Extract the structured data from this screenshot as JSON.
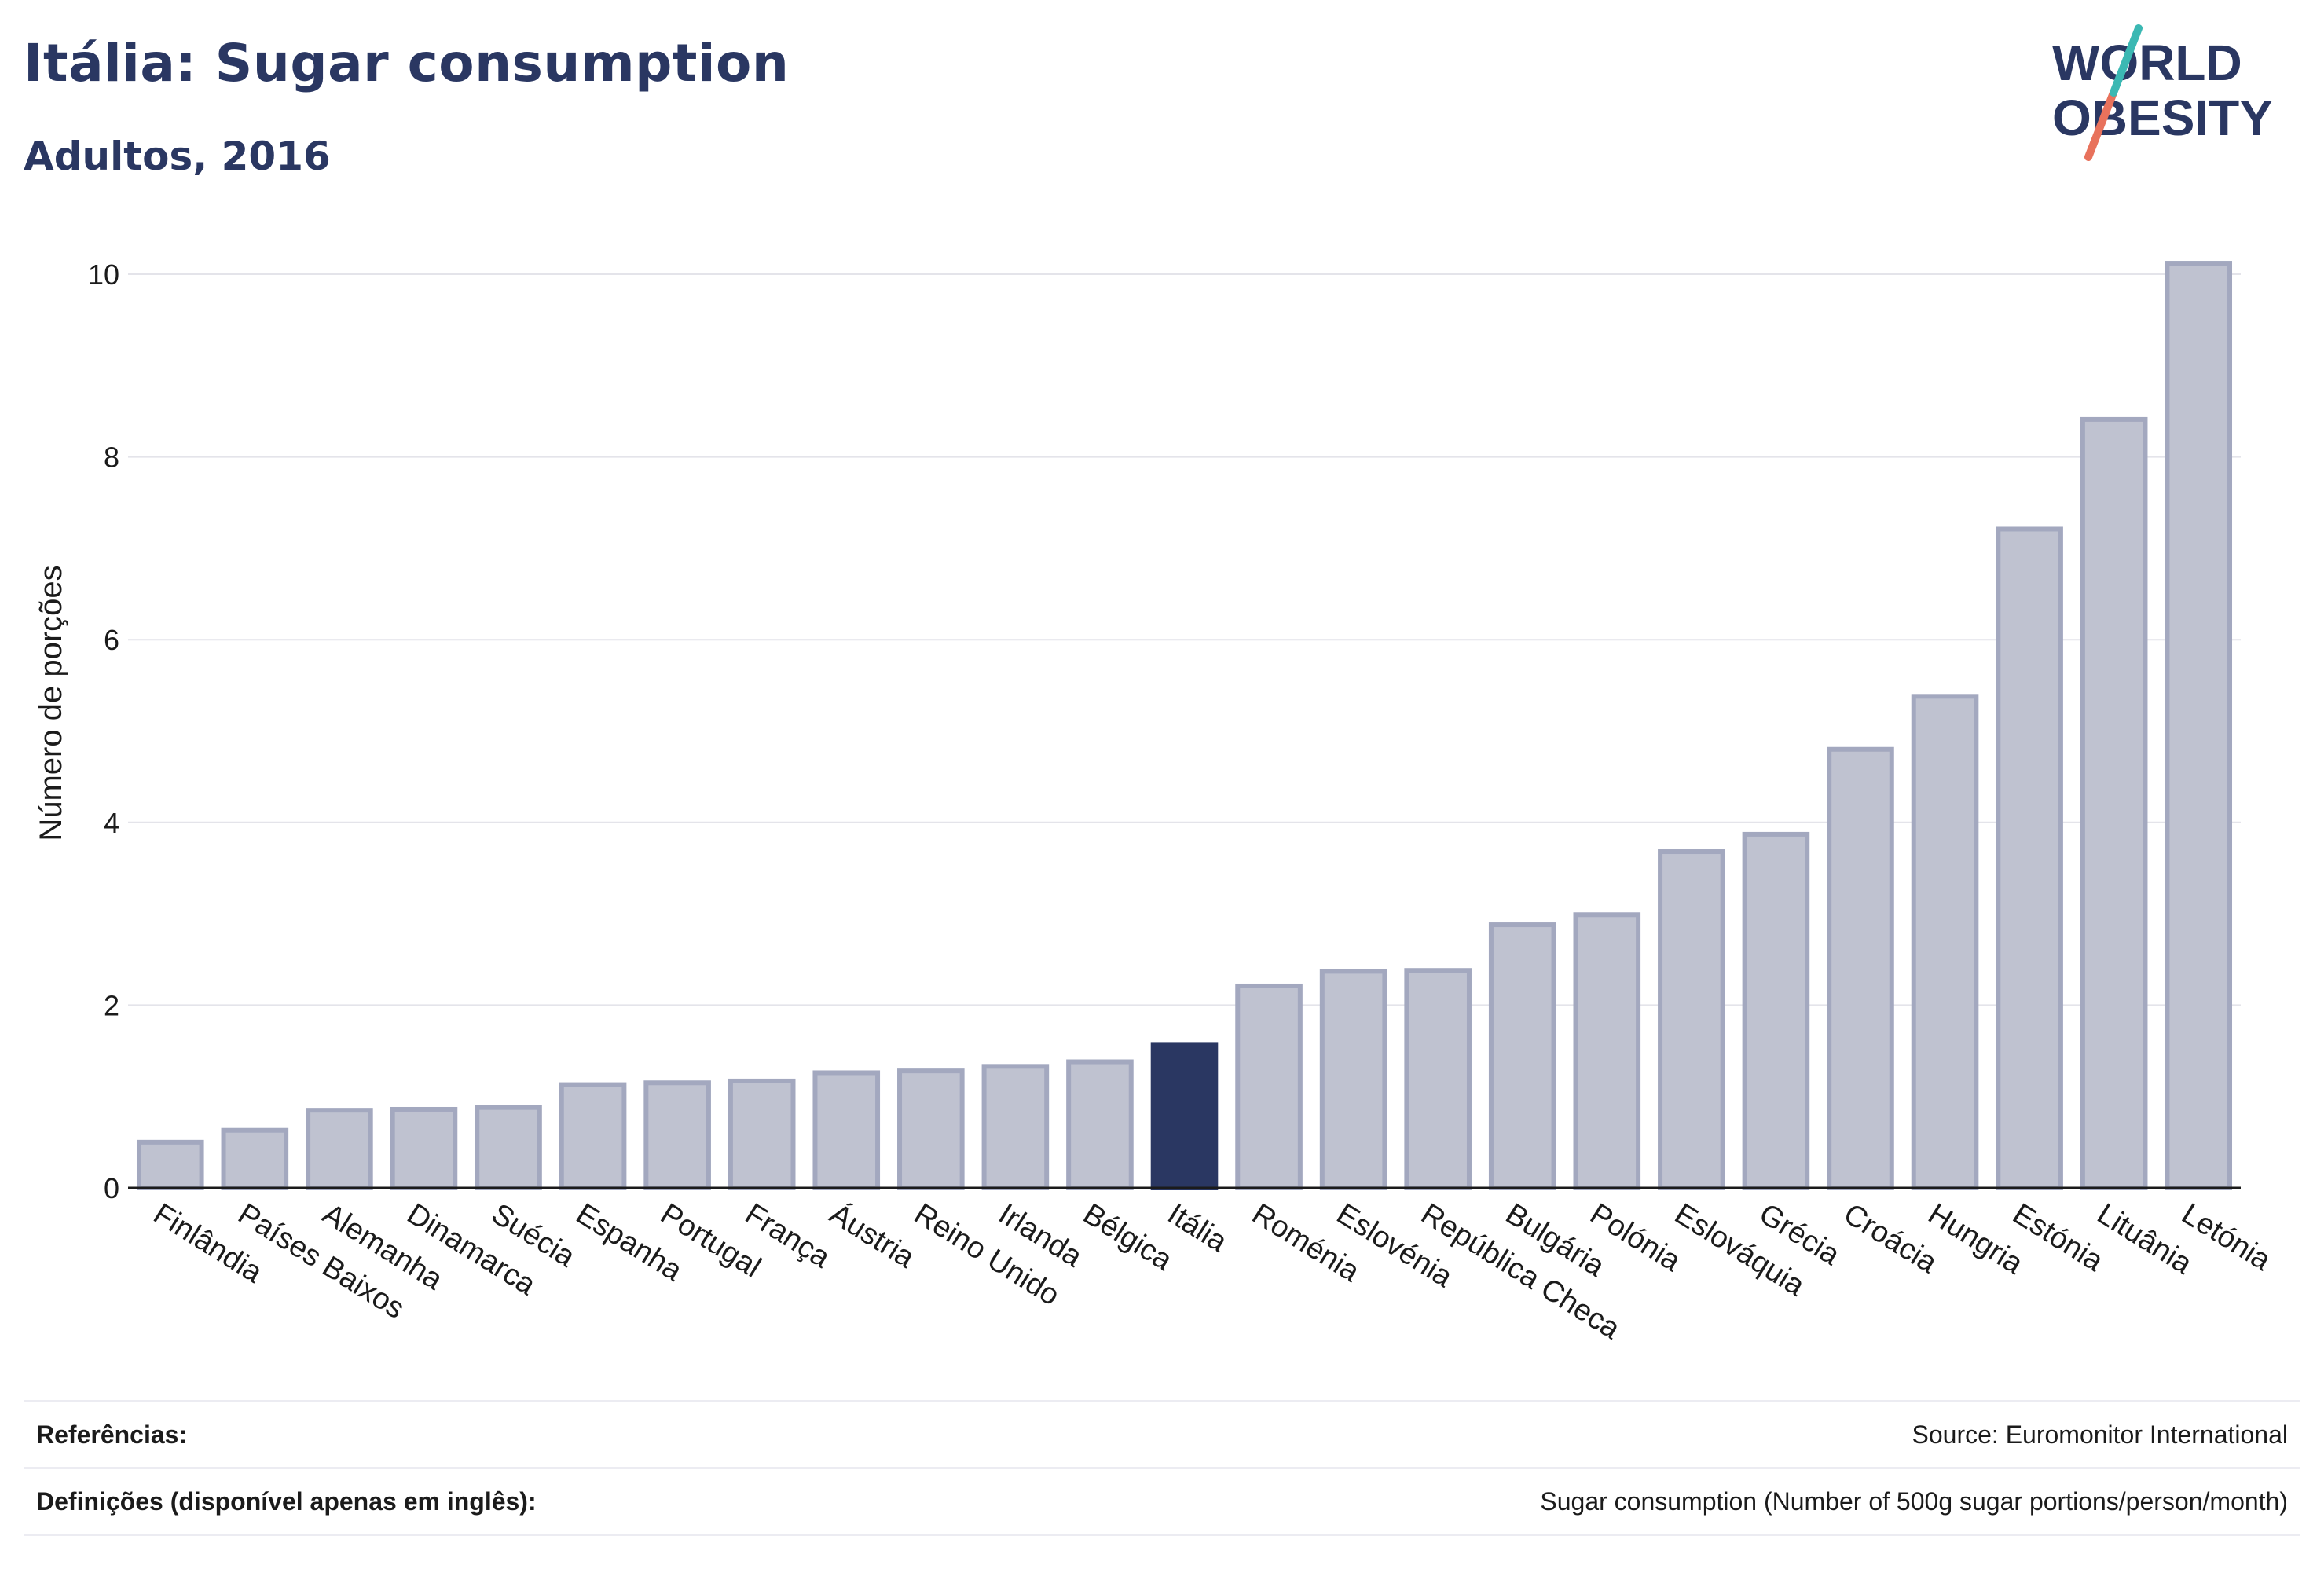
{
  "header": {
    "title": "Itália: Sugar consumption",
    "subtitle": "Adultos, 2016"
  },
  "logo": {
    "line1": "WORLD",
    "line2": "OBESITY"
  },
  "colors": {
    "highlight": "#2a3762",
    "bar_fill": "#bfc2d0",
    "bar_stroke": "#a3a8bf",
    "grid": "#e4e4ea",
    "logo_teal": "#3bb8b3",
    "logo_coral": "#e8725c"
  },
  "chart_data": {
    "type": "bar",
    "ylabel": "Número de porções",
    "xlabel": "",
    "ylim": [
      0,
      10.6
    ],
    "yticks": [
      0,
      2,
      4,
      6,
      8,
      10
    ],
    "grid": true,
    "highlight": "Itália",
    "categories": [
      "Finlândia",
      "Países Baixos",
      "Alemanha",
      "Dinamarca",
      "Suécia",
      "Espanha",
      "Portugal",
      "França",
      "Áustria",
      "Reino Unido",
      "Irlanda",
      "Bélgica",
      "Itália",
      "Roménia",
      "Eslovénia",
      "República Checa",
      "Bulgária",
      "Polónia",
      "Eslováquia",
      "Grécia",
      "Croácia",
      "Hungria",
      "Estónia",
      "Lituânia",
      "Letónia"
    ],
    "values": [
      0.5,
      0.63,
      0.85,
      0.86,
      0.88,
      1.13,
      1.15,
      1.17,
      1.26,
      1.28,
      1.33,
      1.38,
      1.57,
      2.21,
      2.37,
      2.38,
      2.88,
      2.99,
      3.68,
      3.87,
      4.8,
      5.38,
      7.21,
      8.41,
      10.12
    ]
  },
  "footer": {
    "references_label": "Referências:",
    "references_value": "Source: Euromonitor International",
    "definitions_label": "Definições (disponível apenas em inglês):",
    "definitions_value": "Sugar consumption (Number of 500g sugar portions/person/month)"
  }
}
